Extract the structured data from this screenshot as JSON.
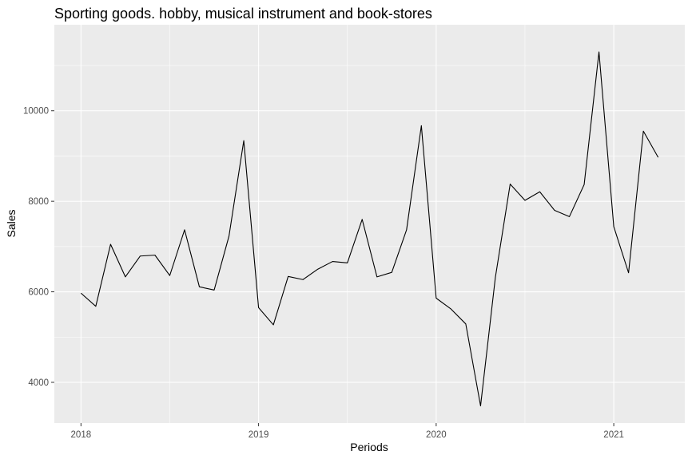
{
  "chart_data": {
    "type": "line",
    "title": "Sporting goods. hobby, musical instrument and book-stores",
    "xlabel": "Periods",
    "ylabel": "Sales",
    "xlim": [
      2017.85,
      2021.4
    ],
    "ylim": [
      3100,
      11900
    ],
    "x_ticks": [
      {
        "value": 2018,
        "label": "2018"
      },
      {
        "value": 2019,
        "label": "2019"
      },
      {
        "value": 2020,
        "label": "2020"
      },
      {
        "value": 2021,
        "label": "2021"
      }
    ],
    "y_ticks": [
      {
        "value": 4000,
        "label": "4000"
      },
      {
        "value": 6000,
        "label": "6000"
      },
      {
        "value": 8000,
        "label": "8000"
      },
      {
        "value": 10000,
        "label": "10000"
      }
    ],
    "grid": true,
    "background": "#ebebeb",
    "line_color": "#000000",
    "series": [
      {
        "x": [
          "2018-01",
          "2018-02",
          "2018-03",
          "2018-04",
          "2018-05",
          "2018-06",
          "2018-07",
          "2018-08",
          "2018-09",
          "2018-10",
          "2018-11",
          "2018-12",
          "2019-01",
          "2019-02",
          "2019-03",
          "2019-04",
          "2019-05",
          "2019-06",
          "2019-07",
          "2019-08",
          "2019-09",
          "2019-10",
          "2019-11",
          "2019-12",
          "2020-01",
          "2020-02",
          "2020-03",
          "2020-04",
          "2020-05",
          "2020-06",
          "2020-07",
          "2020-08",
          "2020-09",
          "2020-10",
          "2020-11",
          "2020-12",
          "2021-01",
          "2021-02",
          "2021-03",
          "2021-04"
        ],
        "values": [
          5970,
          5680,
          7050,
          6330,
          6790,
          6810,
          6360,
          7370,
          6110,
          6040,
          7230,
          9340,
          5650,
          5270,
          6340,
          6270,
          6500,
          6670,
          6640,
          7600,
          6330,
          6430,
          7370,
          9670,
          5860,
          5620,
          5290,
          3480,
          6320,
          8380,
          8020,
          8210,
          7800,
          7660,
          8370,
          11300,
          7440,
          6420,
          9550,
          8970
        ]
      }
    ]
  }
}
